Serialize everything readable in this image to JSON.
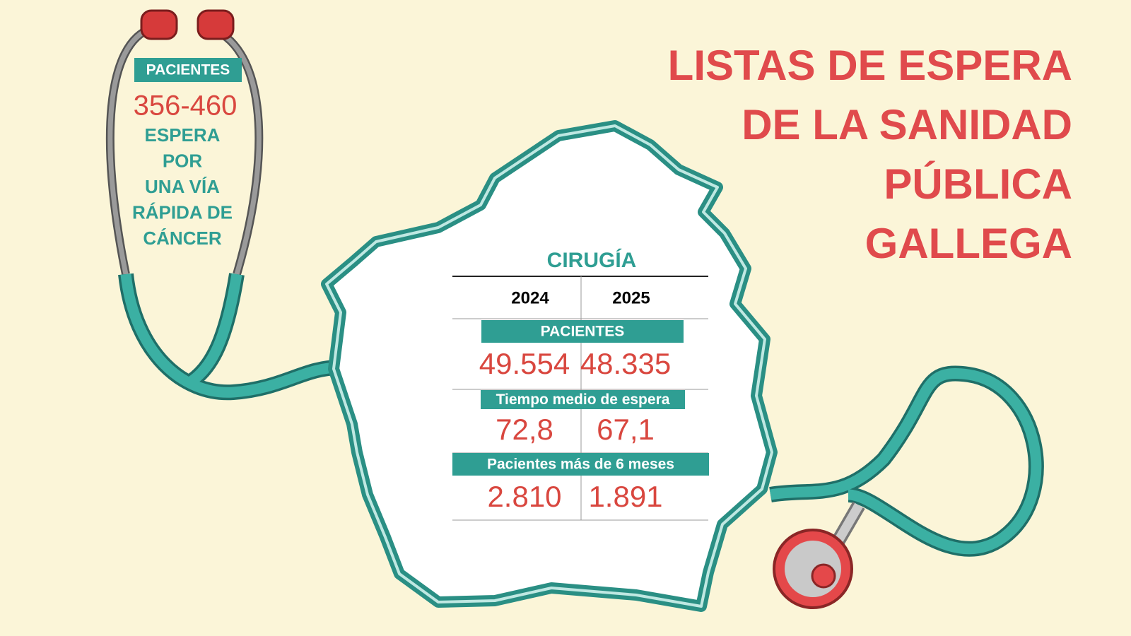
{
  "title": {
    "lines": [
      "LISTAS DE ESPERA",
      "DE LA SANIDAD",
      "PÚBLICA",
      "GALLEGA"
    ]
  },
  "callout": {
    "label": "PACIENTES",
    "figure": "356-460",
    "lines": [
      "ESPERA",
      "POR",
      "UNA VÍA",
      "RÁPIDA DE",
      "CÁNCER"
    ]
  },
  "table": {
    "title": "CIRUGÍA",
    "columns": [
      "2024",
      "2025"
    ],
    "sections": [
      {
        "label": "PACIENTES",
        "values": [
          "49.554",
          "48.335"
        ]
      },
      {
        "label": "Tiempo medio de espera",
        "values": [
          "72,8",
          "67,1"
        ]
      },
      {
        "label": "Pacientes más de 6 meses",
        "values": [
          "2.810",
          "1.891"
        ]
      }
    ]
  }
}
